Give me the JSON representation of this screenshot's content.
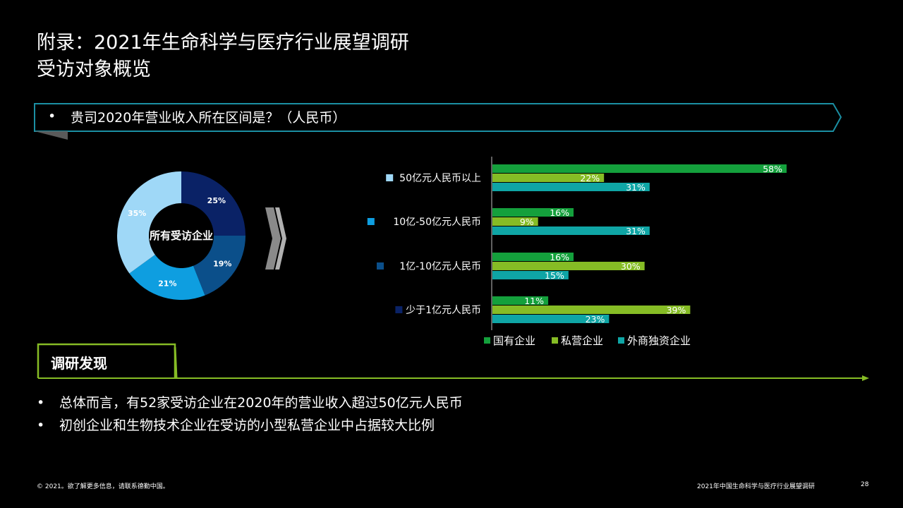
{
  "header": {
    "title_line1": "附录：2021年生命科学与医疗行业展望调研",
    "title_line2": "受访对象概览"
  },
  "question": {
    "bullet": "•",
    "text": "贵司2020年营业收入所在区间是？（人民币）"
  },
  "findings": {
    "title": "调研发现",
    "items": [
      "总体而言，有52家受访企业在2020年的营业收入超过50亿元人民币",
      "初创企业和生物技术企业在受访的小型私营企业中占据较大比例"
    ]
  },
  "footer": {
    "left": "© 2021。欲了解更多信息，请联系德勤中国。",
    "right": "2021年中国生命科学与医疗行业展望调研",
    "page": "28"
  },
  "chart_data": [
    {
      "type": "pie",
      "variant": "donut",
      "center_label": "所有受访企业",
      "slices": [
        {
          "name": "50亿元人民币以上",
          "value": 35,
          "label": "35%",
          "color": "#9fd8f7"
        },
        {
          "name": "10亿-50亿元人民币",
          "value": 21,
          "label": "21%",
          "color": "#0e9ee0"
        },
        {
          "name": "1亿-10亿元人民币",
          "value": 19,
          "label": "19%",
          "color": "#0b4f8a"
        },
        {
          "name": "少于1亿元人民币",
          "value": 25,
          "label": "25%",
          "color": "#0a2266"
        }
      ]
    },
    {
      "type": "bar",
      "orientation": "horizontal",
      "categories": [
        "50亿元人民币以上",
        "10亿-50亿元人民币",
        "1亿-10亿元人民币",
        "少于1亿元人民币"
      ],
      "category_colors": [
        "#9fd8f7",
        "#0e9ee0",
        "#0b4f8a",
        "#0a2266"
      ],
      "series": [
        {
          "name": "国有企业",
          "color": "#14a03c",
          "values": [
            58,
            16,
            16,
            11
          ]
        },
        {
          "name": "私营企业",
          "color": "#86bc25",
          "values": [
            22,
            9,
            30,
            39
          ]
        },
        {
          "name": "外商独资企业",
          "color": "#0fa5a5",
          "values": [
            31,
            31,
            15,
            23
          ]
        }
      ],
      "value_suffix": "%",
      "xlim": [
        0,
        60
      ],
      "legend": "bottom"
    }
  ],
  "colors": {
    "question_border": "#1b8fa3",
    "findings_border": "#86bc25",
    "chevron": "#9a9a9a"
  }
}
